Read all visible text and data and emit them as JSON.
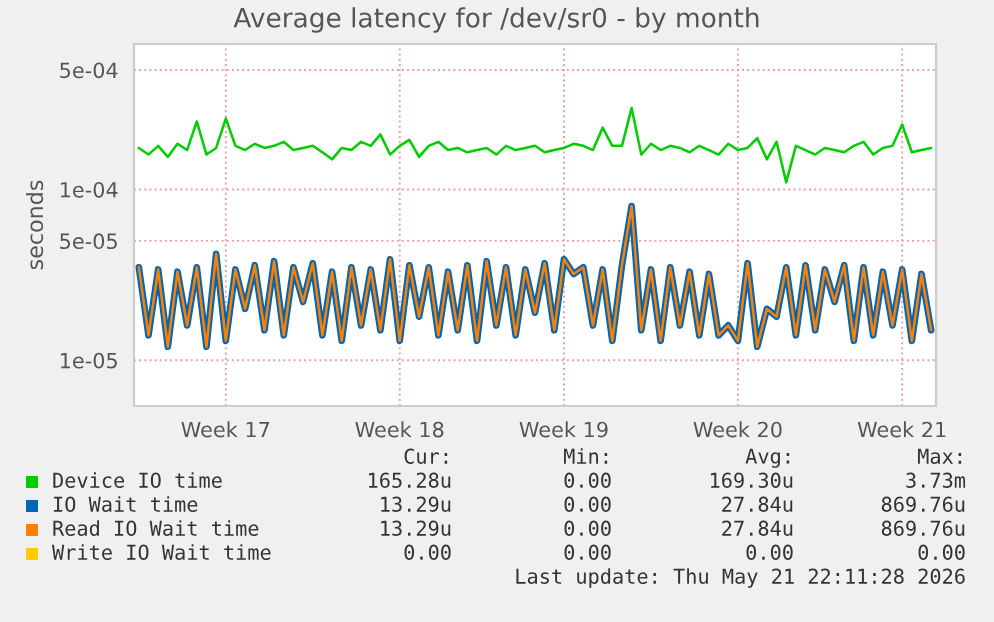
{
  "chart_data": {
    "type": "line",
    "title": "Average latency for /dev/sr0 - by month",
    "ylabel": "seconds",
    "log": "y",
    "ylim": [
      5.4e-06,
      0.00071
    ],
    "yticks": [
      {
        "value": 1e-05,
        "label": "1e-05"
      },
      {
        "value": 0.0001,
        "label": "1e-04"
      },
      {
        "value": 5e-05,
        "label": "5e-05"
      },
      {
        "value": 0.0005,
        "label": "5e-04"
      }
    ],
    "grid": true,
    "legend": "bottom",
    "categories": [
      null,
      null,
      null,
      null,
      null,
      null,
      null,
      null,
      null,
      "Week 17",
      null,
      null,
      null,
      null,
      null,
      null,
      null,
      null,
      null,
      null,
      null,
      null,
      null,
      null,
      null,
      null,
      null,
      "Week 18",
      null,
      null,
      null,
      null,
      null,
      null,
      null,
      null,
      null,
      null,
      null,
      null,
      null,
      null,
      null,
      null,
      "Week 19",
      null,
      null,
      null,
      null,
      null,
      null,
      null,
      null,
      null,
      null,
      null,
      null,
      null,
      null,
      null,
      null,
      null,
      "Week 20",
      null,
      null,
      null,
      null,
      null,
      null,
      null,
      null,
      null,
      null,
      null,
      null,
      null,
      null,
      null,
      null,
      "Week 21",
      null,
      null,
      null
    ],
    "series": [
      {
        "name": "Device IO time",
        "color": "#00cc00",
        "values": [
          0.000175,
          0.00016,
          0.00018,
          0.000155,
          0.000185,
          0.00017,
          0.00025,
          0.00016,
          0.000175,
          0.00026,
          0.00018,
          0.00017,
          0.000185,
          0.000175,
          0.00018,
          0.00019,
          0.00017,
          0.000175,
          0.00018,
          0.000165,
          0.00015,
          0.000175,
          0.00017,
          0.00019,
          0.00018,
          0.00021,
          0.00016,
          0.00018,
          0.000195,
          0.000155,
          0.00018,
          0.00019,
          0.00017,
          0.000175,
          0.000165,
          0.00017,
          0.000175,
          0.00016,
          0.00018,
          0.00017,
          0.000175,
          0.00018,
          0.000165,
          0.00017,
          0.000175,
          0.000185,
          0.00018,
          0.00017,
          0.00023,
          0.00018,
          0.00018,
          0.0003,
          0.00016,
          0.000185,
          0.00017,
          0.00018,
          0.000175,
          0.000165,
          0.00018,
          0.00017,
          0.00016,
          0.000185,
          0.00017,
          0.000175,
          0.0002,
          0.00015,
          0.00019,
          0.00011,
          0.00018,
          0.00017,
          0.00016,
          0.000175,
          0.00017,
          0.000165,
          0.00018,
          0.00019,
          0.00016,
          0.000175,
          0.00018,
          0.00024,
          0.000165,
          0.00017,
          0.000175
        ]
      },
      {
        "name": "IO Wait time",
        "color": "#0066b3",
        "values": [
          3.5e-05,
          1.4e-05,
          3.4e-05,
          1.2e-05,
          3.3e-05,
          1.6e-05,
          3.5e-05,
          1.2e-05,
          4.2e-05,
          1.3e-05,
          3.4e-05,
          2e-05,
          3.6e-05,
          1.5e-05,
          3.8e-05,
          1.4e-05,
          3.5e-05,
          2.2e-05,
          3.7e-05,
          1.4e-05,
          3.3e-05,
          1.3e-05,
          3.5e-05,
          1.6e-05,
          3.4e-05,
          1.5e-05,
          3.9e-05,
          1.3e-05,
          3.6e-05,
          1.8e-05,
          3.5e-05,
          1.4e-05,
          3.3e-05,
          1.5e-05,
          3.6e-05,
          1.3e-05,
          3.8e-05,
          1.6e-05,
          3.5e-05,
          1.4e-05,
          3.4e-05,
          1.9e-05,
          3.7e-05,
          1.5e-05,
          3.9e-05,
          3.2e-05,
          3.5e-05,
          1.6e-05,
          3.4e-05,
          1.3e-05,
          3.6e-05,
          8e-05,
          1.5e-05,
          3.4e-05,
          1.3e-05,
          3.5e-05,
          1.6e-05,
          3.3e-05,
          1.4e-05,
          3.2e-05,
          1.4e-05,
          1.6e-05,
          1.3e-05,
          3.7e-05,
          1.2e-05,
          2e-05,
          1.8e-05,
          3.5e-05,
          1.4e-05,
          3.6e-05,
          1.5e-05,
          3.4e-05,
          2.2e-05,
          3.6e-05,
          1.3e-05,
          3.5e-05,
          1.4e-05,
          3.3e-05,
          1.6e-05,
          3.4e-05,
          1.3e-05,
          3.2e-05,
          1.5e-05
        ]
      },
      {
        "name": "Read IO Wait time",
        "color": "#ff8000",
        "values": [
          3.5e-05,
          1.4e-05,
          3.4e-05,
          1.2e-05,
          3.3e-05,
          1.6e-05,
          3.5e-05,
          1.2e-05,
          4.2e-05,
          1.3e-05,
          3.4e-05,
          2e-05,
          3.6e-05,
          1.5e-05,
          3.8e-05,
          1.4e-05,
          3.5e-05,
          2.2e-05,
          3.7e-05,
          1.4e-05,
          3.3e-05,
          1.3e-05,
          3.5e-05,
          1.6e-05,
          3.4e-05,
          1.5e-05,
          3.9e-05,
          1.3e-05,
          3.6e-05,
          1.8e-05,
          3.5e-05,
          1.4e-05,
          3.3e-05,
          1.5e-05,
          3.6e-05,
          1.3e-05,
          3.8e-05,
          1.6e-05,
          3.5e-05,
          1.4e-05,
          3.4e-05,
          1.9e-05,
          3.7e-05,
          1.5e-05,
          3.9e-05,
          3.2e-05,
          3.5e-05,
          1.6e-05,
          3.4e-05,
          1.3e-05,
          3.6e-05,
          8e-05,
          1.5e-05,
          3.4e-05,
          1.3e-05,
          3.5e-05,
          1.6e-05,
          3.3e-05,
          1.4e-05,
          3.2e-05,
          1.4e-05,
          1.6e-05,
          1.3e-05,
          3.7e-05,
          1.2e-05,
          2e-05,
          1.8e-05,
          3.5e-05,
          1.4e-05,
          3.6e-05,
          1.5e-05,
          3.4e-05,
          2.2e-05,
          3.6e-05,
          1.3e-05,
          3.5e-05,
          1.4e-05,
          3.3e-05,
          1.6e-05,
          3.4e-05,
          1.3e-05,
          3.2e-05,
          1.5e-05
        ]
      },
      {
        "name": "Write IO Wait time",
        "color": "#ffcc00",
        "values": [
          null,
          null,
          null,
          null,
          null,
          null,
          null,
          null,
          null,
          null,
          null,
          null,
          null,
          null,
          null,
          null,
          null,
          null,
          null,
          null,
          null,
          null,
          null,
          null,
          null,
          null,
          null,
          null,
          null,
          null,
          null,
          null,
          null,
          null,
          null,
          null,
          null,
          null,
          null,
          null,
          null,
          null,
          null,
          null,
          null,
          null,
          null,
          null,
          null,
          null,
          null,
          null,
          null,
          null,
          null,
          null,
          null,
          null,
          null,
          null,
          null,
          null,
          null,
          null,
          null,
          null,
          null,
          null,
          null,
          null,
          null,
          null,
          null,
          null,
          null,
          null,
          null,
          null,
          null,
          null,
          null,
          null,
          null
        ]
      }
    ],
    "annotations": [
      "Cur:",
      "Min:",
      "Avg:",
      "Max:",
      "165.28u",
      "0.00",
      "169.30u",
      "3.73m",
      "13.29u",
      "0.00",
      "27.84u",
      "869.76u",
      "13.29u",
      "0.00",
      "27.84u",
      "869.76u",
      "0.00",
      "0.00",
      "0.00",
      "0.00",
      "Last update: Thu May 21 22:11:28 2026"
    ]
  }
}
